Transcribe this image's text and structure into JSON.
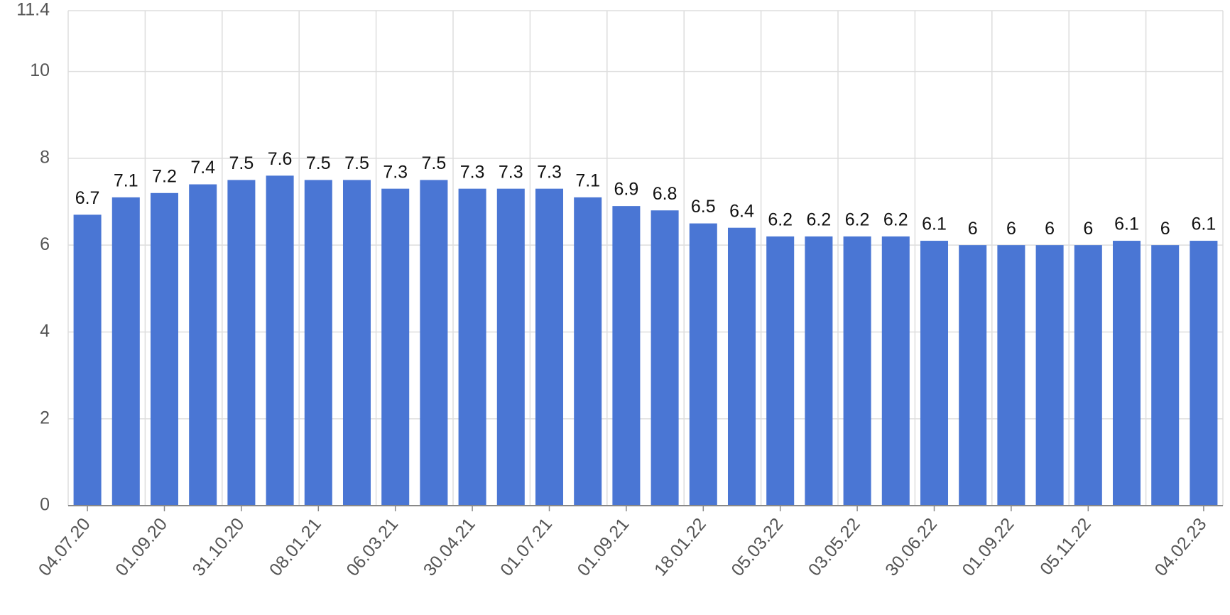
{
  "chart_data": {
    "type": "bar",
    "categories": [
      "04.07.20",
      null,
      "01.09.20",
      null,
      "31.10.20",
      null,
      "08.01.21",
      null,
      "06.03.21",
      null,
      "30.04.21",
      null,
      "01.07.21",
      null,
      "01.09.21",
      null,
      "18.01.22",
      null,
      "05.03.22",
      null,
      "03.05.22",
      null,
      "30.06.22",
      null,
      "01.09.22",
      null,
      "05.11.22",
      null,
      null,
      "04.02.23"
    ],
    "values": [
      6.7,
      7.1,
      7.2,
      7.4,
      7.5,
      7.6,
      7.5,
      7.5,
      7.3,
      7.5,
      7.3,
      7.3,
      7.3,
      7.1,
      6.9,
      6.8,
      6.5,
      6.4,
      6.2,
      6.2,
      6.2,
      6.2,
      6.1,
      6,
      6,
      6,
      6,
      6.1,
      6,
      6.1
    ],
    "color": "#4a76d4",
    "ylim": [
      0,
      11.4
    ],
    "yticks": [
      0,
      2,
      4,
      6,
      8,
      10,
      11.4
    ],
    "grid": true
  }
}
